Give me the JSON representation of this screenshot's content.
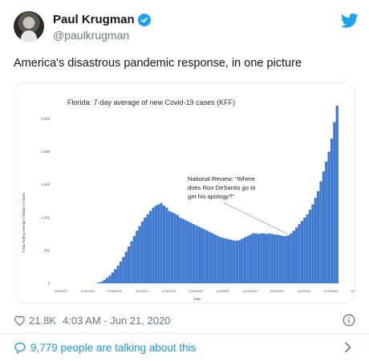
{
  "tweet": {
    "display_name": "Paul Krugman",
    "handle": "@paulkrugman",
    "text": "America's disastrous pandemic response, in one picture",
    "likes": "21.8K",
    "timestamp": "4:03 AM - Jun 21, 2020",
    "conversation": "9,779 people are talking about this",
    "icons": {
      "avatar": "avatar",
      "verified": "verified-badge-icon",
      "brand": "twitter-bird-icon",
      "like": "heart-icon",
      "info": "info-icon",
      "conversation": "speech-bubble-icon",
      "chevron": "chevron-right-icon"
    },
    "colors": {
      "brand": "#1da1f2",
      "link": "#1b95e0",
      "bar": "#3f78cf"
    }
  },
  "chart_data": {
    "type": "bar",
    "title": "Florida: 7-day average of new Covid-19 cases (KFF)",
    "xlabel": "Date",
    "ylabel": "7-Day Rolling Average Change in Cases",
    "ylim": [
      0,
      2700
    ],
    "yticks": [
      "0",
      "500",
      "1,000",
      "1,500",
      "2,000",
      "2,500"
    ],
    "ytick_values": [
      0,
      500,
      1000,
      1500,
      2000,
      2500
    ],
    "xtick_labels": [
      "3/5/2020",
      "3/15/2020",
      "3/25/2020",
      "4/4/2020",
      "4/14/2020",
      "4/24/2020",
      "5/4/2020",
      "5/14/2020",
      "5/24/2020",
      "6/3/2020",
      "6/13/2020",
      "6/23/2020"
    ],
    "xtick_day_index": [
      0,
      10,
      20,
      30,
      40,
      50,
      60,
      70,
      80,
      90,
      100,
      110
    ],
    "start_day_index": 0,
    "values": [
      0,
      0,
      0,
      0,
      0,
      0,
      0,
      0,
      0,
      0,
      0,
      0,
      0,
      0,
      0,
      5,
      15,
      30,
      55,
      85,
      120,
      165,
      215,
      270,
      330,
      400,
      480,
      560,
      640,
      720,
      800,
      870,
      940,
      1000,
      1050,
      1100,
      1150,
      1180,
      1200,
      1220,
      1180,
      1150,
      1100,
      1080,
      1060,
      1040,
      1000,
      980,
      960,
      940,
      920,
      900,
      880,
      860,
      840,
      820,
      800,
      780,
      760,
      740,
      720,
      700,
      690,
      680,
      670,
      660,
      650,
      650,
      660,
      680,
      700,
      720,
      740,
      760,
      760,
      750,
      760,
      760,
      750,
      760,
      750,
      740,
      740,
      730,
      720,
      720,
      730,
      760,
      800,
      850,
      900,
      950,
      1000,
      1050,
      1120,
      1200,
      1300,
      1400,
      1550,
      1700,
      1850,
      2000,
      2200,
      2450,
      2700
    ],
    "annotation": "National Review: “Where does Ron DeSantis go to get his apology?”",
    "annotation_target_day": 86
  }
}
